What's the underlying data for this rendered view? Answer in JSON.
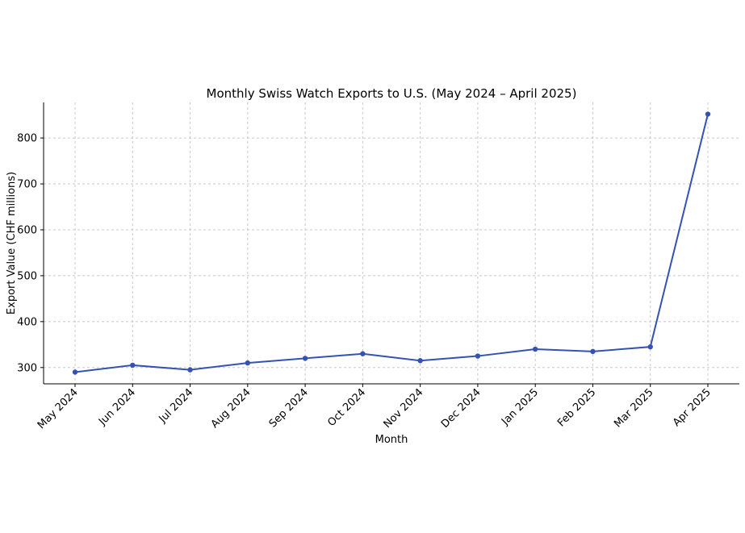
{
  "chart_data": {
    "type": "line",
    "title": "Monthly Swiss Watch Exports to U.S. (May 2024 – April 2025)",
    "xlabel": "Month",
    "ylabel": "Export Value (CHF millions)",
    "categories": [
      "May 2024",
      "Jun 2024",
      "Jul 2024",
      "Aug 2024",
      "Sep 2024",
      "Oct 2024",
      "Nov 2024",
      "Dec 2024",
      "Jan 2025",
      "Feb 2025",
      "Mar 2025",
      "Apr 2025"
    ],
    "series": [
      {
        "values": [
          290,
          305,
          295,
          310,
          320,
          330,
          315,
          325,
          340,
          335,
          345,
          852
        ],
        "color": "#3452b4"
      }
    ],
    "ylim": [
      264.5,
      877.5
    ],
    "yticks": [
      300,
      400,
      500,
      600,
      700,
      800
    ],
    "grid": true,
    "legend": "none"
  }
}
